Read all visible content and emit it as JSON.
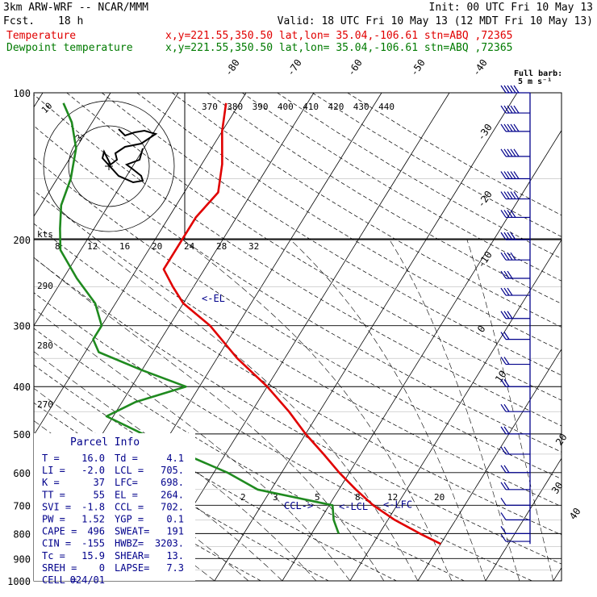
{
  "header": {
    "model": "3km ARW-WRF -- NCAR/MMM",
    "init": "Init: 00 UTC Fri 10 May 13",
    "fcst_label": "Fcst.",
    "fcst_value": "18 h",
    "valid": "Valid: 18 UTC Fri 10 May 13 (12 MDT Fri 10 May 13)",
    "temp_label": "Temperature",
    "temp_loc": "x,y=221.55,350.50   lat,lon= 35.04,-106.61  stn=ABQ ,72365",
    "dew_label": "Dewpoint temperature",
    "dew_loc": "x,y=221.55,350.50   lat,lon= 35.04,-106.61  stn=ABQ ,72365"
  },
  "colors": {
    "temperature": "#e00000",
    "dewpoint": "#1f8a1f",
    "parcel_info": "#00008b",
    "hodograph": "#000000"
  },
  "chart_data": {
    "type": "line",
    "chart_kind": "skew-T log-P sounding",
    "y_scale": "log",
    "pressure_labels": [
      "100",
      "200",
      "300",
      "400",
      "500",
      "600",
      "700",
      "800",
      "900",
      "1000"
    ],
    "skewed_isotherm_labels": [
      "-80",
      "-70",
      "-60",
      "-50",
      "-40",
      "-30",
      "-20",
      "-10",
      "0",
      "10",
      "20",
      "30",
      "40"
    ],
    "theta_labels": [
      "370",
      "380",
      "390",
      "400",
      "410",
      "420",
      "430",
      "440"
    ],
    "theta_left_labels": [
      "290",
      "280",
      "270"
    ],
    "mixing_ratio_labels": [
      "2",
      "3",
      "5",
      "8",
      "12",
      "20"
    ],
    "hodo_speed_labels": [
      "8",
      "12",
      "16",
      "20",
      "24",
      "28",
      "32"
    ],
    "hodo_ring_labels": [
      "10",
      "3"
    ],
    "hodo_units": "kts",
    "wind_label": "Full barb:",
    "wind_label_units": "5 m s⁻¹",
    "annotations": [
      "<-EL",
      "CCL->",
      "<-LCL",
      "<-LFC"
    ],
    "series": [
      {
        "name": "Temperature",
        "color": "#e00000",
        "p": [
          840,
          800,
          750,
          700,
          650,
          600,
          550,
          500,
          450,
          400,
          350,
          300,
          270,
          250,
          230,
          200,
          180,
          160,
          140,
          120,
          105
        ],
        "t": [
          20.0,
          16.0,
          11.0,
          6.5,
          2.5,
          -1.5,
          -5.5,
          -10.0,
          -14.5,
          -20.0,
          -27.0,
          -34.0,
          -40.0,
          -43.0,
          -46.0,
          -46.0,
          -46.0,
          -45.0,
          -47.0,
          -50.0,
          -52.0
        ]
      },
      {
        "name": "Dewpoint temperature",
        "color": "#1f8a1f",
        "p": [
          800,
          750,
          700,
          650,
          600,
          550,
          500,
          460,
          430,
          400,
          370,
          340,
          320,
          300,
          270,
          240,
          210,
          190,
          170,
          150,
          130,
          115,
          105
        ],
        "t": [
          4.0,
          2.0,
          0.5,
          -12.0,
          -18.0,
          -26.0,
          -34.0,
          -41.0,
          -38.0,
          -32.0,
          -40.0,
          -48.0,
          -50.0,
          -50.0,
          -53.0,
          -58.0,
          -63.0,
          -65.0,
          -67.0,
          -68.0,
          -70.0,
          -73.0,
          -76.0
        ]
      }
    ],
    "hodograph": {
      "units": "kts",
      "u": [
        3.0,
        5.0,
        8.0,
        11.0,
        14.5,
        10.0,
        5.0,
        2.0,
        2.5,
        0.5,
        -1.5,
        -2.0,
        3.0,
        7.5,
        10.5,
        10.0,
        7.5,
        5.5,
        9.5,
        10.5
      ],
      "v": [
        11.5,
        9.5,
        10.5,
        11.0,
        10.0,
        7.0,
        6.0,
        4.0,
        2.0,
        0.5,
        4.5,
        2.5,
        -3.0,
        -5.0,
        -4.5,
        -3.0,
        -1.0,
        0.5,
        2.0,
        5.5
      ]
    }
  },
  "parcel": {
    "title": "Parcel Info",
    "rows": [
      [
        "T  =",
        "16.0",
        "Td =",
        "4.1"
      ],
      [
        "LI =",
        "-2.0",
        "LCL =",
        "705."
      ],
      [
        "K  =",
        "37",
        "LFC=",
        "698."
      ],
      [
        "TT =",
        "55",
        "EL =",
        "264."
      ],
      [
        "SVI =",
        "-1.8",
        "CCL =",
        "702."
      ],
      [
        "PW =",
        "1.52",
        "YGP =",
        "0.1"
      ],
      [
        "CAPE =",
        "496",
        "SWEAT=",
        "191"
      ],
      [
        "CIN =",
        "-155",
        "HWBZ=",
        "3203."
      ],
      [
        "Tc =",
        "15.9",
        "SHEAR=",
        "13."
      ],
      [
        "SREH =",
        "0",
        "LAPSE=",
        "7.3"
      ],
      [
        "CELL =",
        "024/01",
        "",
        ""
      ]
    ]
  },
  "winds": {
    "levels_hpa": [
      100,
      110,
      120,
      135,
      150,
      165,
      180,
      200,
      220,
      240,
      260,
      290,
      320,
      360,
      400,
      450,
      500,
      550,
      600,
      650,
      700,
      750,
      800,
      830
    ],
    "speed_ms": [
      25,
      25,
      25,
      25,
      25,
      25,
      20,
      20,
      20,
      15,
      15,
      15,
      10,
      10,
      10,
      10,
      10,
      10,
      10,
      10,
      5,
      5,
      5,
      5
    ]
  }
}
